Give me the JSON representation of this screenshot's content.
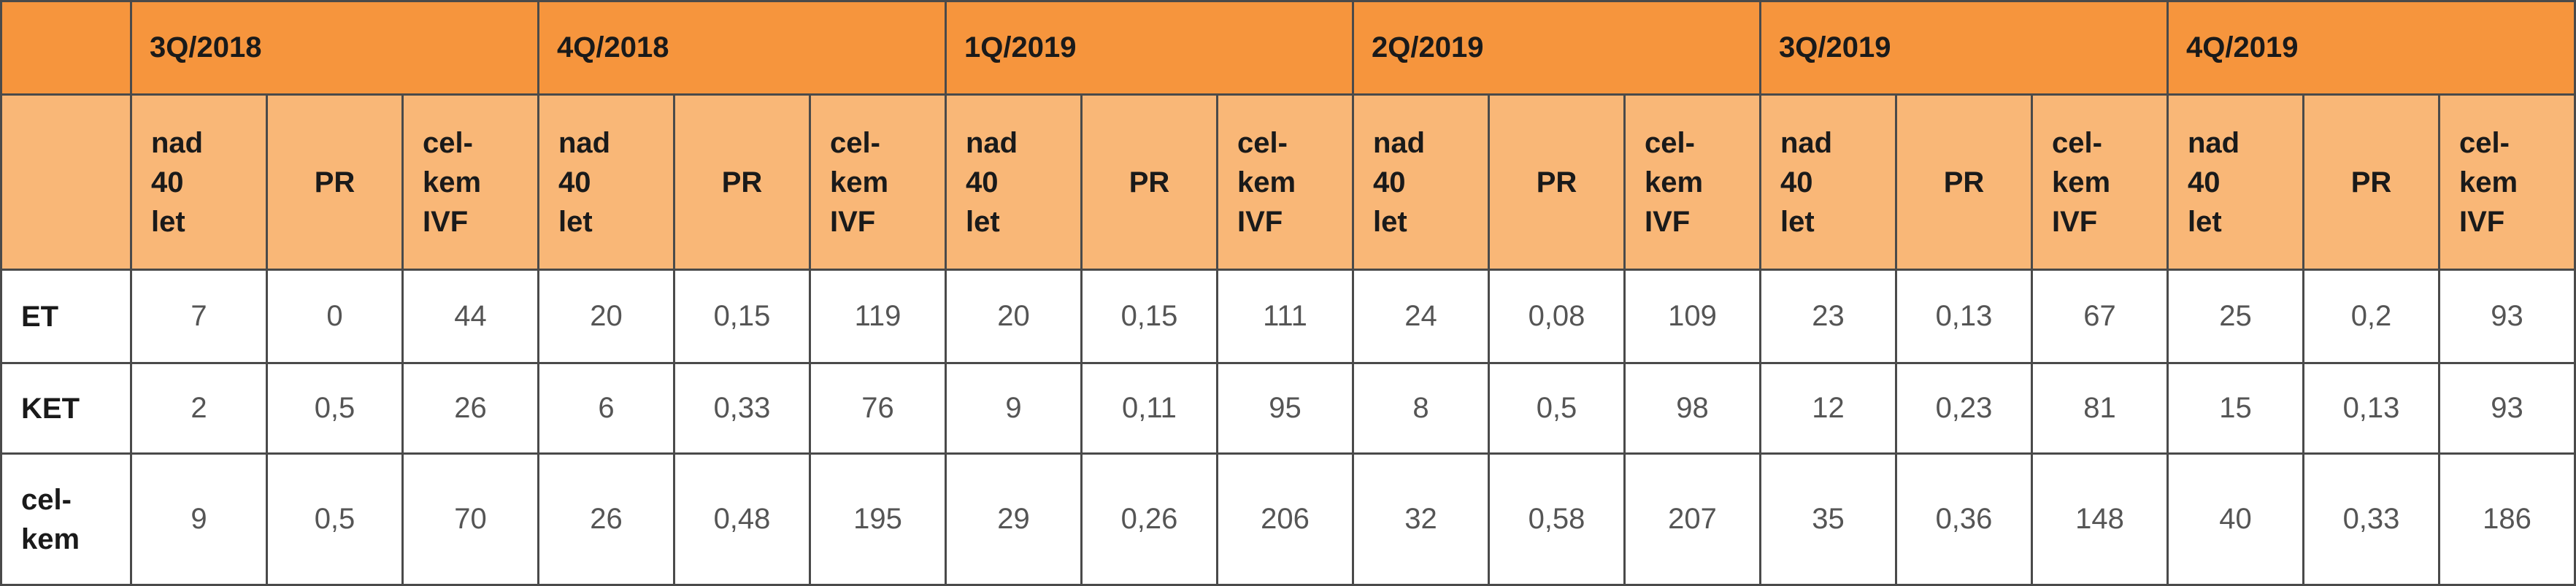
{
  "periods": [
    "3Q/2018",
    "4Q/2018",
    "1Q/2019",
    "2Q/2019",
    "3Q/2019",
    "4Q/2019"
  ],
  "subheaders": {
    "over40": [
      "nad",
      "40",
      "let"
    ],
    "pr": "PR",
    "total_ivf": [
      "cel-",
      "kem",
      "IVF"
    ]
  },
  "rows": [
    {
      "label": [
        "ET"
      ],
      "values": [
        "7",
        "0",
        "44",
        "20",
        "0,15",
        "119",
        "20",
        "0,15",
        "111",
        "24",
        "0,08",
        "109",
        "23",
        "0,13",
        "67",
        "25",
        "0,2",
        "93"
      ]
    },
    {
      "label": [
        "KET"
      ],
      "values": [
        "2",
        "0,5",
        "26",
        "6",
        "0,33",
        "76",
        "9",
        "0,11",
        "95",
        "8",
        "0,5",
        "98",
        "12",
        "0,23",
        "81",
        "15",
        "0,13",
        "93"
      ]
    },
    {
      "label": [
        "cel-",
        "kem"
      ],
      "values": [
        "9",
        "0,5",
        "70",
        "26",
        "0,48",
        "195",
        "29",
        "0,26",
        "206",
        "32",
        "0,58",
        "207",
        "35",
        "0,36",
        "148",
        "40",
        "0,33",
        "186"
      ]
    }
  ],
  "colors": {
    "header_dark": "#f6953d",
    "header_light": "#f9b777",
    "border": "#4a4a4a"
  }
}
